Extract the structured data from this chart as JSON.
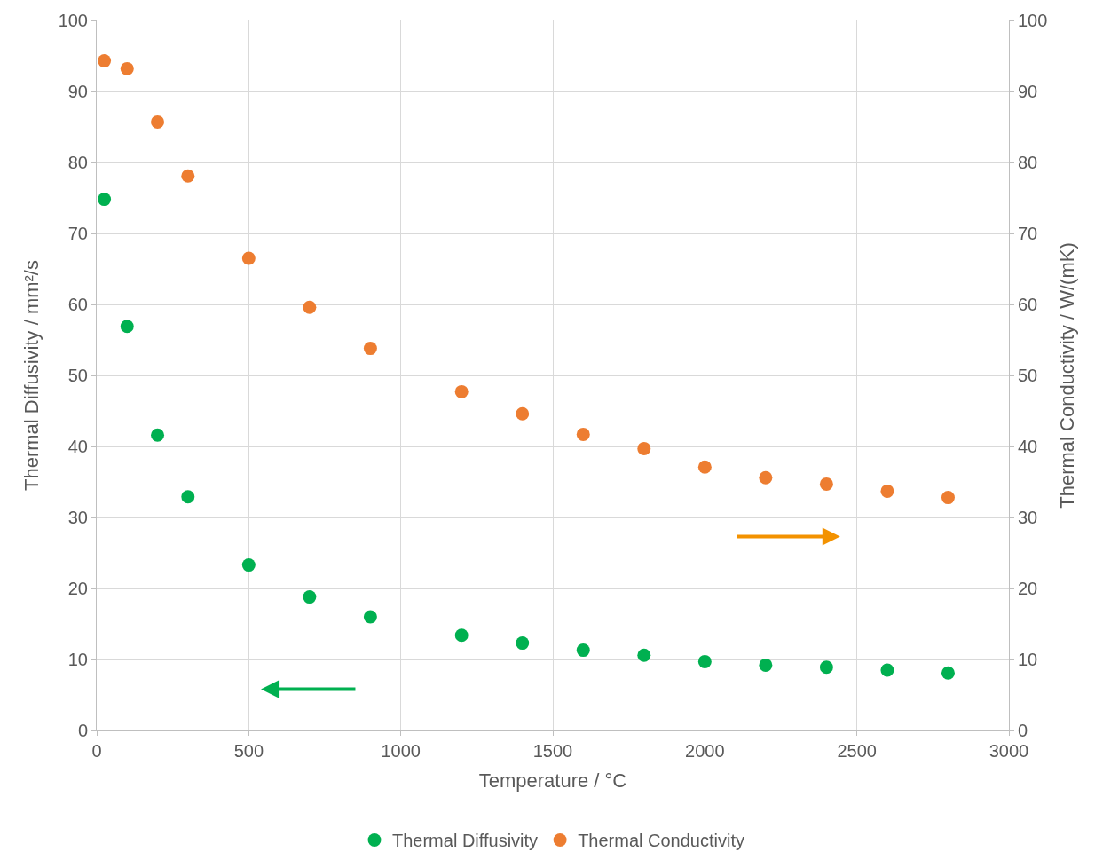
{
  "chart_data": {
    "type": "scatter",
    "xlabel": "Temperature / °C",
    "ylabel": "Thermal Diffusivity / mm²/s",
    "y2label": "Thermal Conductivity / W/(mK)",
    "x": [
      25,
      100,
      200,
      300,
      500,
      700,
      900,
      1200,
      1400,
      1600,
      1800,
      2000,
      2200,
      2400,
      2600,
      2800
    ],
    "series": [
      {
        "name": "Thermal Diffusivity",
        "color": "#00b050",
        "values": [
          74.8,
          56.9,
          41.6,
          32.9,
          23.3,
          18.8,
          16.0,
          13.4,
          12.3,
          11.3,
          10.6,
          9.7,
          9.2,
          8.9,
          8.5,
          8.1
        ]
      },
      {
        "name": "Thermal Conductivity",
        "color": "#ed7d31",
        "axis": "y2",
        "values": [
          94.3,
          93.2,
          85.7,
          78.1,
          66.5,
          59.6,
          53.8,
          47.7,
          44.6,
          41.7,
          39.7,
          37.1,
          35.6,
          34.7,
          33.7,
          32.8
        ]
      }
    ],
    "xlim": [
      0,
      3000
    ],
    "xticks": [
      0,
      500,
      1000,
      1500,
      2000,
      2500,
      3000
    ],
    "ylim": [
      0,
      100
    ],
    "yticks": [
      0,
      10,
      20,
      30,
      40,
      50,
      60,
      70,
      80,
      90,
      100
    ],
    "y2lim": [
      0,
      100
    ],
    "y2ticks": [
      0,
      10,
      20,
      30,
      40,
      50,
      60,
      70,
      80,
      90,
      100
    ],
    "grid": true,
    "legend": "bottom",
    "marker": "circle"
  }
}
